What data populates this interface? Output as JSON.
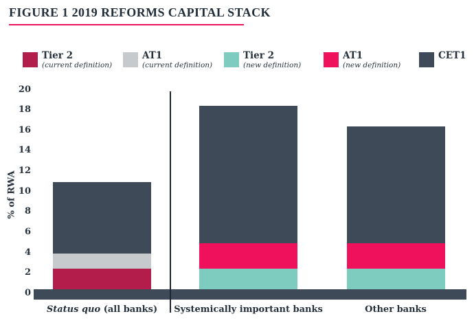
{
  "figure": {
    "title": "FIGURE 1 2019 REFORMS CAPITAL STACK"
  },
  "palette": {
    "accent_pink": "#F0115C",
    "dark_slate": "#3E4A57",
    "crimson": "#B21D4B",
    "light_gray": "#C7CACD",
    "teal": "#7ECCBF",
    "divider_dark": "#1B2430",
    "text_dark": "#25303B"
  },
  "legend": {
    "items": [
      {
        "label": "Tier 2",
        "sublabel": "(current definition)",
        "color": "#B21D4B"
      },
      {
        "label": "AT1",
        "sublabel": "(current definition)",
        "color": "#C7CACD"
      },
      {
        "label": "Tier 2",
        "sublabel": "(new definition)",
        "color": "#7ECCBF"
      },
      {
        "label": "AT1",
        "sublabel": "(new definition)",
        "color": "#F0115C"
      },
      {
        "label": "CET1",
        "sublabel": "",
        "color": "#3E4A57"
      }
    ]
  },
  "chart_data": {
    "type": "bar",
    "stacked": true,
    "title": "FIGURE 1 2019 REFORMS CAPITAL STACK",
    "xlabel": "",
    "ylabel": "% of RWA",
    "ylim": [
      0,
      20
    ],
    "yticks": [
      0,
      2,
      4,
      6,
      8,
      10,
      12,
      14,
      16,
      18,
      20
    ],
    "grid": false,
    "legend_position": "top",
    "categories": [
      {
        "label": "Status quo (all banks)",
        "italic_segment": "Status quo",
        "plain_segment": " (all banks)"
      },
      {
        "label": "Systemically important banks",
        "italic_segment": "",
        "plain_segment": "Systemically important banks"
      },
      {
        "label": "Other banks",
        "italic_segment": "",
        "plain_segment": "Other banks"
      }
    ],
    "series": [
      {
        "name": "Tier 2 (current definition)",
        "color": "#B21D4B",
        "values": [
          2,
          0,
          0
        ]
      },
      {
        "name": "AT1 (current definition)",
        "color": "#C7CACD",
        "values": [
          1.5,
          0,
          0
        ]
      },
      {
        "name": "Tier 2 (new definition)",
        "color": "#7ECCBF",
        "values": [
          0,
          2,
          2
        ]
      },
      {
        "name": "AT1 (new definition)",
        "color": "#F0115C",
        "values": [
          0,
          2.5,
          2.5
        ]
      },
      {
        "name": "CET1",
        "color": "#3E4A57",
        "values": [
          7,
          13.5,
          11.5
        ]
      }
    ],
    "divider_after_category_index": 0
  }
}
